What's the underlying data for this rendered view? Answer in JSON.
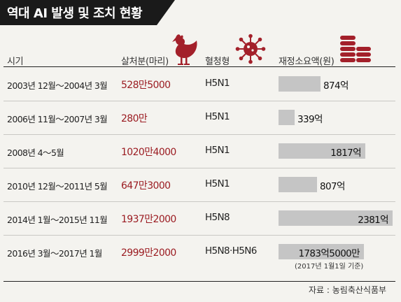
{
  "title": "역대 AI 발생 및 조치 현황",
  "headers": {
    "period": "시기",
    "culled": "살처분(마리)",
    "serotype": "혈청형",
    "cost": "재정소요액(원)"
  },
  "icons": {
    "culled": "chicken-icon",
    "serotype": "virus-icon",
    "cost": "coin-stack-icon"
  },
  "colors": {
    "title_bg": "#1a1a1a",
    "culled_text": "#9b1c22",
    "bar": "#c5c5c5",
    "icon": "#a3202a"
  },
  "chart_data": {
    "type": "table",
    "title": "역대 AI 발생 및 조치 현황",
    "rows": [
      {
        "period": "2003년 12월～2004년 3월",
        "culled": "528만5000",
        "serotype": "H5N1",
        "cost_label": "874억",
        "cost": 874
      },
      {
        "period": "2006년 11월～2007년 3월",
        "culled": "280만",
        "serotype": "H5N1",
        "cost_label": "339억",
        "cost": 339
      },
      {
        "period": "2008년 4～5월",
        "culled": "1020만4000",
        "serotype": "H5N1",
        "cost_label": "1817억",
        "cost": 1817
      },
      {
        "period": "2010년 12월～2011년 5월",
        "culled": "647만3000",
        "serotype": "H5N1",
        "cost_label": "807억",
        "cost": 807
      },
      {
        "period": "2014년 1월～2015년 11월",
        "culled": "1937만2000",
        "serotype": "H5N8",
        "cost_label": "2381억",
        "cost": 2381
      },
      {
        "period": "2016년 3월～2017년 1월",
        "culled": "2999만2000",
        "serotype": "H5N8·H5N6",
        "cost_label": "1783억5000만",
        "cost": 1783.5
      }
    ],
    "cost_unit": "억원"
  },
  "note": "(2017년 1월1일 기준)",
  "source": "자료 : 농림축산식품부"
}
